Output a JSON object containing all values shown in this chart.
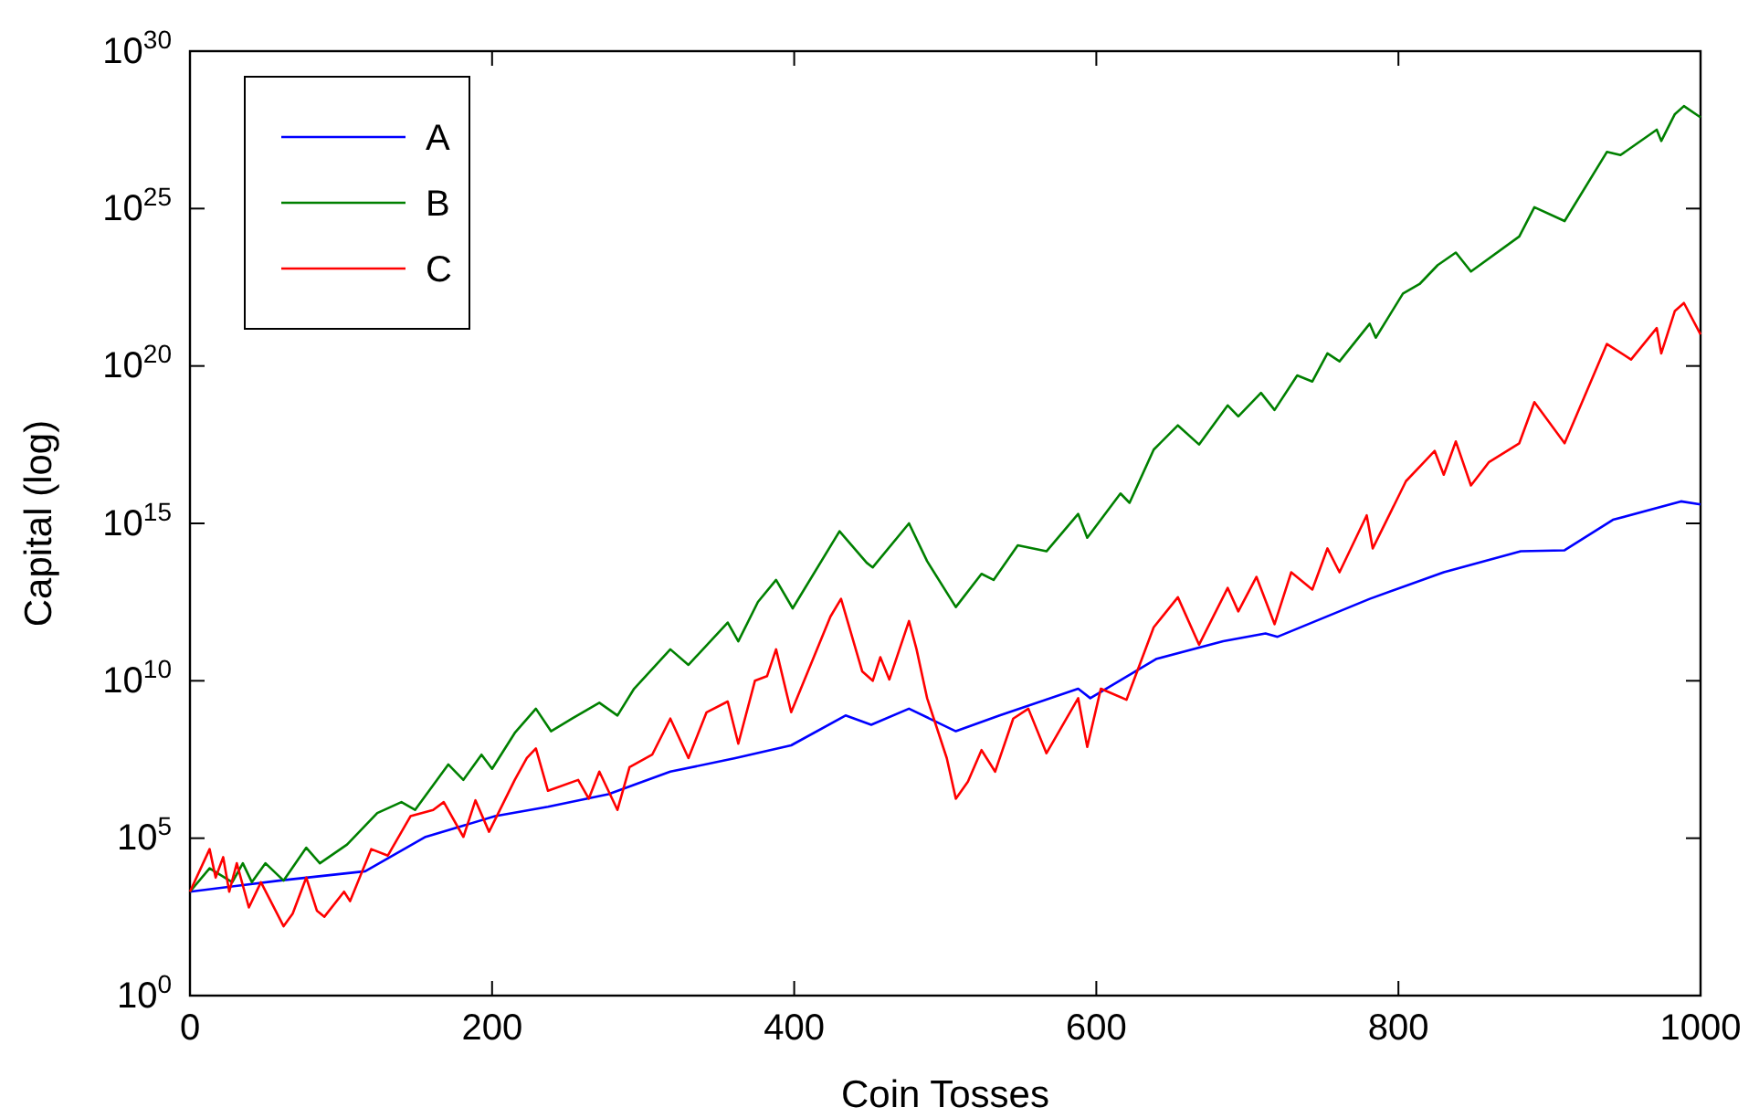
{
  "chart_data": {
    "type": "line",
    "xlabel": "Coin Tosses",
    "ylabel": "Capital (log)",
    "log": "y",
    "grid": false,
    "legend": "top left",
    "marker": "none",
    "line_style": "solid",
    "xlim": [
      0,
      1000
    ],
    "xticks": [
      0,
      200,
      400,
      600,
      800,
      1000
    ],
    "ylim": [
      1,
      1e+30
    ],
    "yticks": [
      {
        "value": 1,
        "label": "10$^{0}$"
      },
      {
        "value": 100000.0,
        "label": "10$^{5}$"
      },
      {
        "value": 10000000000.0,
        "label": "10$^{10}$"
      },
      {
        "value": 1000000000000000.0,
        "label": "10$^{15}$"
      },
      {
        "value": 1e+20,
        "label": "10$^{20}$"
      },
      {
        "value": 1e+25,
        "label": "10$^{25}$"
      },
      {
        "value": 1e+30,
        "label": "10$^{30}$"
      }
    ],
    "series": [
      {
        "name": "A",
        "color": "#0000ff",
        "x": [
          0,
          59,
          116,
          156,
          202,
          237,
          277,
          318,
          361,
          398,
          434,
          451,
          476,
          507,
          536,
          588,
          596,
          640,
          684,
          712,
          720,
          781,
          830,
          881,
          910,
          942,
          987,
          1000
        ],
        "values": [
          2000.0,
          4500.0,
          8900.0,
          110000.0,
          500000.0,
          1000000.0,
          2500000.0,
          13000000.0,
          35000000.0,
          89000000.0,
          790000000.0,
          400000000.0,
          1300000000.0,
          250000000.0,
          790000000.0,
          5600000000.0,
          2800000000.0,
          50000000000.0,
          180000000000.0,
          320000000000.0,
          250000000000.0,
          4000000000000.0,
          28000000000000.0,
          130000000000000.0,
          140000000000000.0,
          1300000000000000.0,
          5000000000000000.0,
          4000000000000000.0
        ]
      },
      {
        "name": "B",
        "color": "#008000",
        "x": [
          0,
          13,
          28,
          35,
          41,
          50,
          62,
          77,
          86,
          104,
          124,
          140,
          149,
          171,
          181,
          193,
          200,
          215,
          229,
          239,
          253,
          271,
          283,
          294,
          318,
          330,
          356,
          363,
          376,
          388,
          399,
          430,
          448,
          452,
          476,
          488,
          507,
          524,
          532,
          548,
          567,
          588,
          594,
          616,
          622,
          638,
          654,
          668,
          687,
          694,
          709,
          718,
          733,
          743,
          753,
          761,
          781,
          785,
          803,
          814,
          826,
          838,
          848,
          880,
          890,
          910,
          938,
          947,
          971,
          974,
          983,
          989,
          1000
        ],
        "values": [
          2000.0,
          11000.0,
          4000.0,
          16000.0,
          4000.0,
          16000.0,
          4500.0,
          50000.0,
          16000.0,
          63000.0,
          630000.0,
          1400000.0,
          790000.0,
          22000000.0,
          7100000.0,
          45000000.0,
          16000000.0,
          220000000.0,
          1300000000.0,
          250000000.0,
          630000000.0,
          2000000000.0,
          790000000.0,
          5600000000.0,
          100000000000.0,
          32000000000.0,
          710000000000.0,
          180000000000.0,
          3200000000000.0,
          16000000000000.0,
          2000000000000.0,
          560000000000000.0,
          56000000000000.0,
          40000000000000.0,
          1000000000000000.0,
          63000000000000.0,
          2200000000000.0,
          25000000000000.0,
          16000000000000.0,
          200000000000000.0,
          130000000000000.0,
          2000000000000000.0,
          350000000000000.0,
          8900000000000000.0,
          4500000000000000.0,
          2.2e+17,
          1.3e+18,
          3.2e+17,
          5.6e+18,
          2.5e+18,
          1.4e+19,
          4e+18,
          5e+19,
          3.2e+19,
          2.5e+20,
          1.4e+20,
          2.2e+21,
          7.9e+20,
          2e+22,
          4e+22,
          1.6e+23,
          4e+23,
          1e+23,
          1.3e+24,
          1.1e+25,
          4e+24,
          6.3e+26,
          5e+26,
          3.2e+27,
          1.4e+27,
          1e+28,
          1.8e+28,
          7.9e+27
        ]
      },
      {
        "name": "C",
        "color": "#ff0000",
        "x": [
          0,
          13,
          17,
          22,
          26,
          31,
          39,
          47,
          62,
          68,
          77,
          84,
          89,
          102,
          106,
          120,
          131,
          146,
          161,
          168,
          181,
          189,
          198,
          215,
          223,
          229,
          237,
          257,
          264,
          271,
          283,
          291,
          306,
          318,
          330,
          342,
          356,
          363,
          374,
          382,
          388,
          398,
          424,
          431,
          445,
          452,
          457,
          463,
          476,
          481,
          488,
          501,
          507,
          515,
          524,
          533,
          545,
          555,
          567,
          588,
          594,
          603,
          620,
          638,
          654,
          668,
          687,
          694,
          706,
          718,
          729,
          743,
          753,
          761,
          779,
          783,
          805,
          824,
          830,
          838,
          848,
          860,
          880,
          890,
          910,
          938,
          954,
          971,
          974,
          983,
          989,
          1000
        ],
        "values": [
          2000.0,
          45000.0,
          5600.0,
          25000.0,
          2000.0,
          16000.0,
          630.0,
          4000.0,
          160.0,
          400.0,
          5600.0,
          500.0,
          320.0,
          2000.0,
          1000.0,
          45000.0,
          28000.0,
          500000.0,
          790000.0,
          1400000.0,
          110000.0,
          1600000.0,
          160000.0,
          7100000.0,
          35000000.0,
          71000000.0,
          3200000.0,
          7100000.0,
          1800000.0,
          13000000.0,
          790000.0,
          18000000.0,
          45000000.0,
          630000000.0,
          35000000.0,
          1000000000.0,
          2200000000.0,
          100000000.0,
          10000000000.0,
          14000000000.0,
          100000000000.0,
          1000000000.0,
          1100000000000.0,
          4000000000000.0,
          20000000000.0,
          10000000000.0,
          56000000000.0,
          11000000000.0,
          790000000000.0,
          100000000000.0,
          2800000000.0,
          35000000.0,
          1800000.0,
          6300000.0,
          63000000.0,
          13000000.0,
          630000000.0,
          1300000000.0,
          50000000.0,
          2800000000.0,
          79000000.0,
          5600000000.0,
          2500000000.0,
          500000000000.0,
          4500000000000.0,
          140000000000.0,
          8900000000000.0,
          1600000000000.0,
          20000000000000.0,
          630000000000.0,
          28000000000000.0,
          7900000000000.0,
          160000000000000.0,
          28000000000000.0,
          1800000000000000.0,
          160000000000000.0,
          2.2e+16,
          2e+17,
          3.5e+16,
          4e+17,
          1.6e+16,
          8.9e+16,
          3.5e+17,
          7.1e+18,
          3.5e+17,
          5e+20,
          1.6e+20,
          1.6e+21,
          2.5e+20,
          5.6e+21,
          1e+22,
          1e+21
        ]
      }
    ]
  }
}
